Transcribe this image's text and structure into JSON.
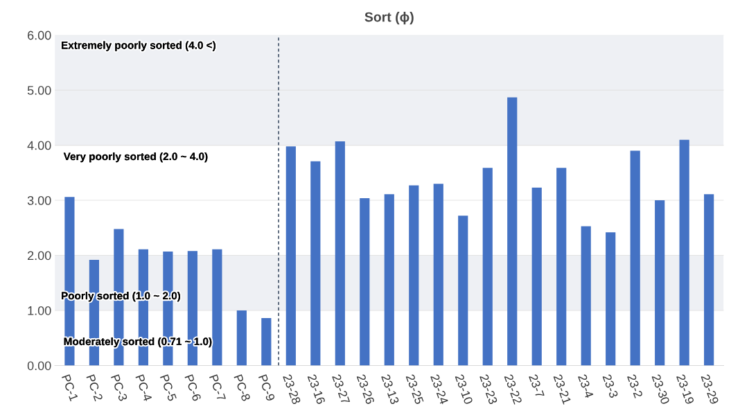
{
  "chart_data": {
    "type": "bar",
    "title": "Sort (ϕ)",
    "categories": [
      "PC-1",
      "PC-2",
      "PC-3",
      "PC-4",
      "PC-5",
      "PC-6",
      "PC-7",
      "PC-8",
      "PC-9",
      "23-28",
      "23-16",
      "23-27",
      "23-26",
      "23-13",
      "23-25",
      "23-24",
      "23-10",
      "23-23",
      "23-22",
      "23-7",
      "23-21",
      "23-4",
      "23-3",
      "23-2",
      "23-30",
      "23-19",
      "23-29"
    ],
    "values": [
      3.06,
      1.92,
      2.48,
      2.11,
      2.07,
      2.08,
      2.11,
      1.0,
      0.86,
      3.98,
      3.71,
      4.07,
      3.04,
      3.11,
      3.27,
      3.3,
      2.72,
      3.59,
      4.87,
      3.23,
      3.59,
      2.53,
      2.42,
      3.9,
      3.0,
      4.1,
      3.11
    ],
    "color": "#4472c4",
    "ylim": [
      0,
      6
    ],
    "yticks": [
      {
        "value": 0,
        "label": "0.00"
      },
      {
        "value": 1,
        "label": "1.00"
      },
      {
        "value": 2,
        "label": "2.00"
      },
      {
        "value": 3,
        "label": "3.00"
      },
      {
        "value": 4,
        "label": "4.00"
      },
      {
        "value": 5,
        "label": "5.00"
      },
      {
        "value": 6,
        "label": "6.00"
      }
    ],
    "grid": "y",
    "bands": [
      {
        "axis": "y",
        "from": 4.0,
        "to": 6.0,
        "label": "Extremely poorly sorted (4.0 <)",
        "color": "#eef0f4"
      },
      {
        "axis": "y",
        "from": 1.0,
        "to": 2.0,
        "label": "Poorly sorted (1.0 ~ 2.0)",
        "color": "#eef0f4"
      }
    ],
    "annotations": [
      "Very poorly sorted (2.0 ~ 4.0)",
      "Moderately sorted (0.71 ~ 1.0)"
    ]
  }
}
